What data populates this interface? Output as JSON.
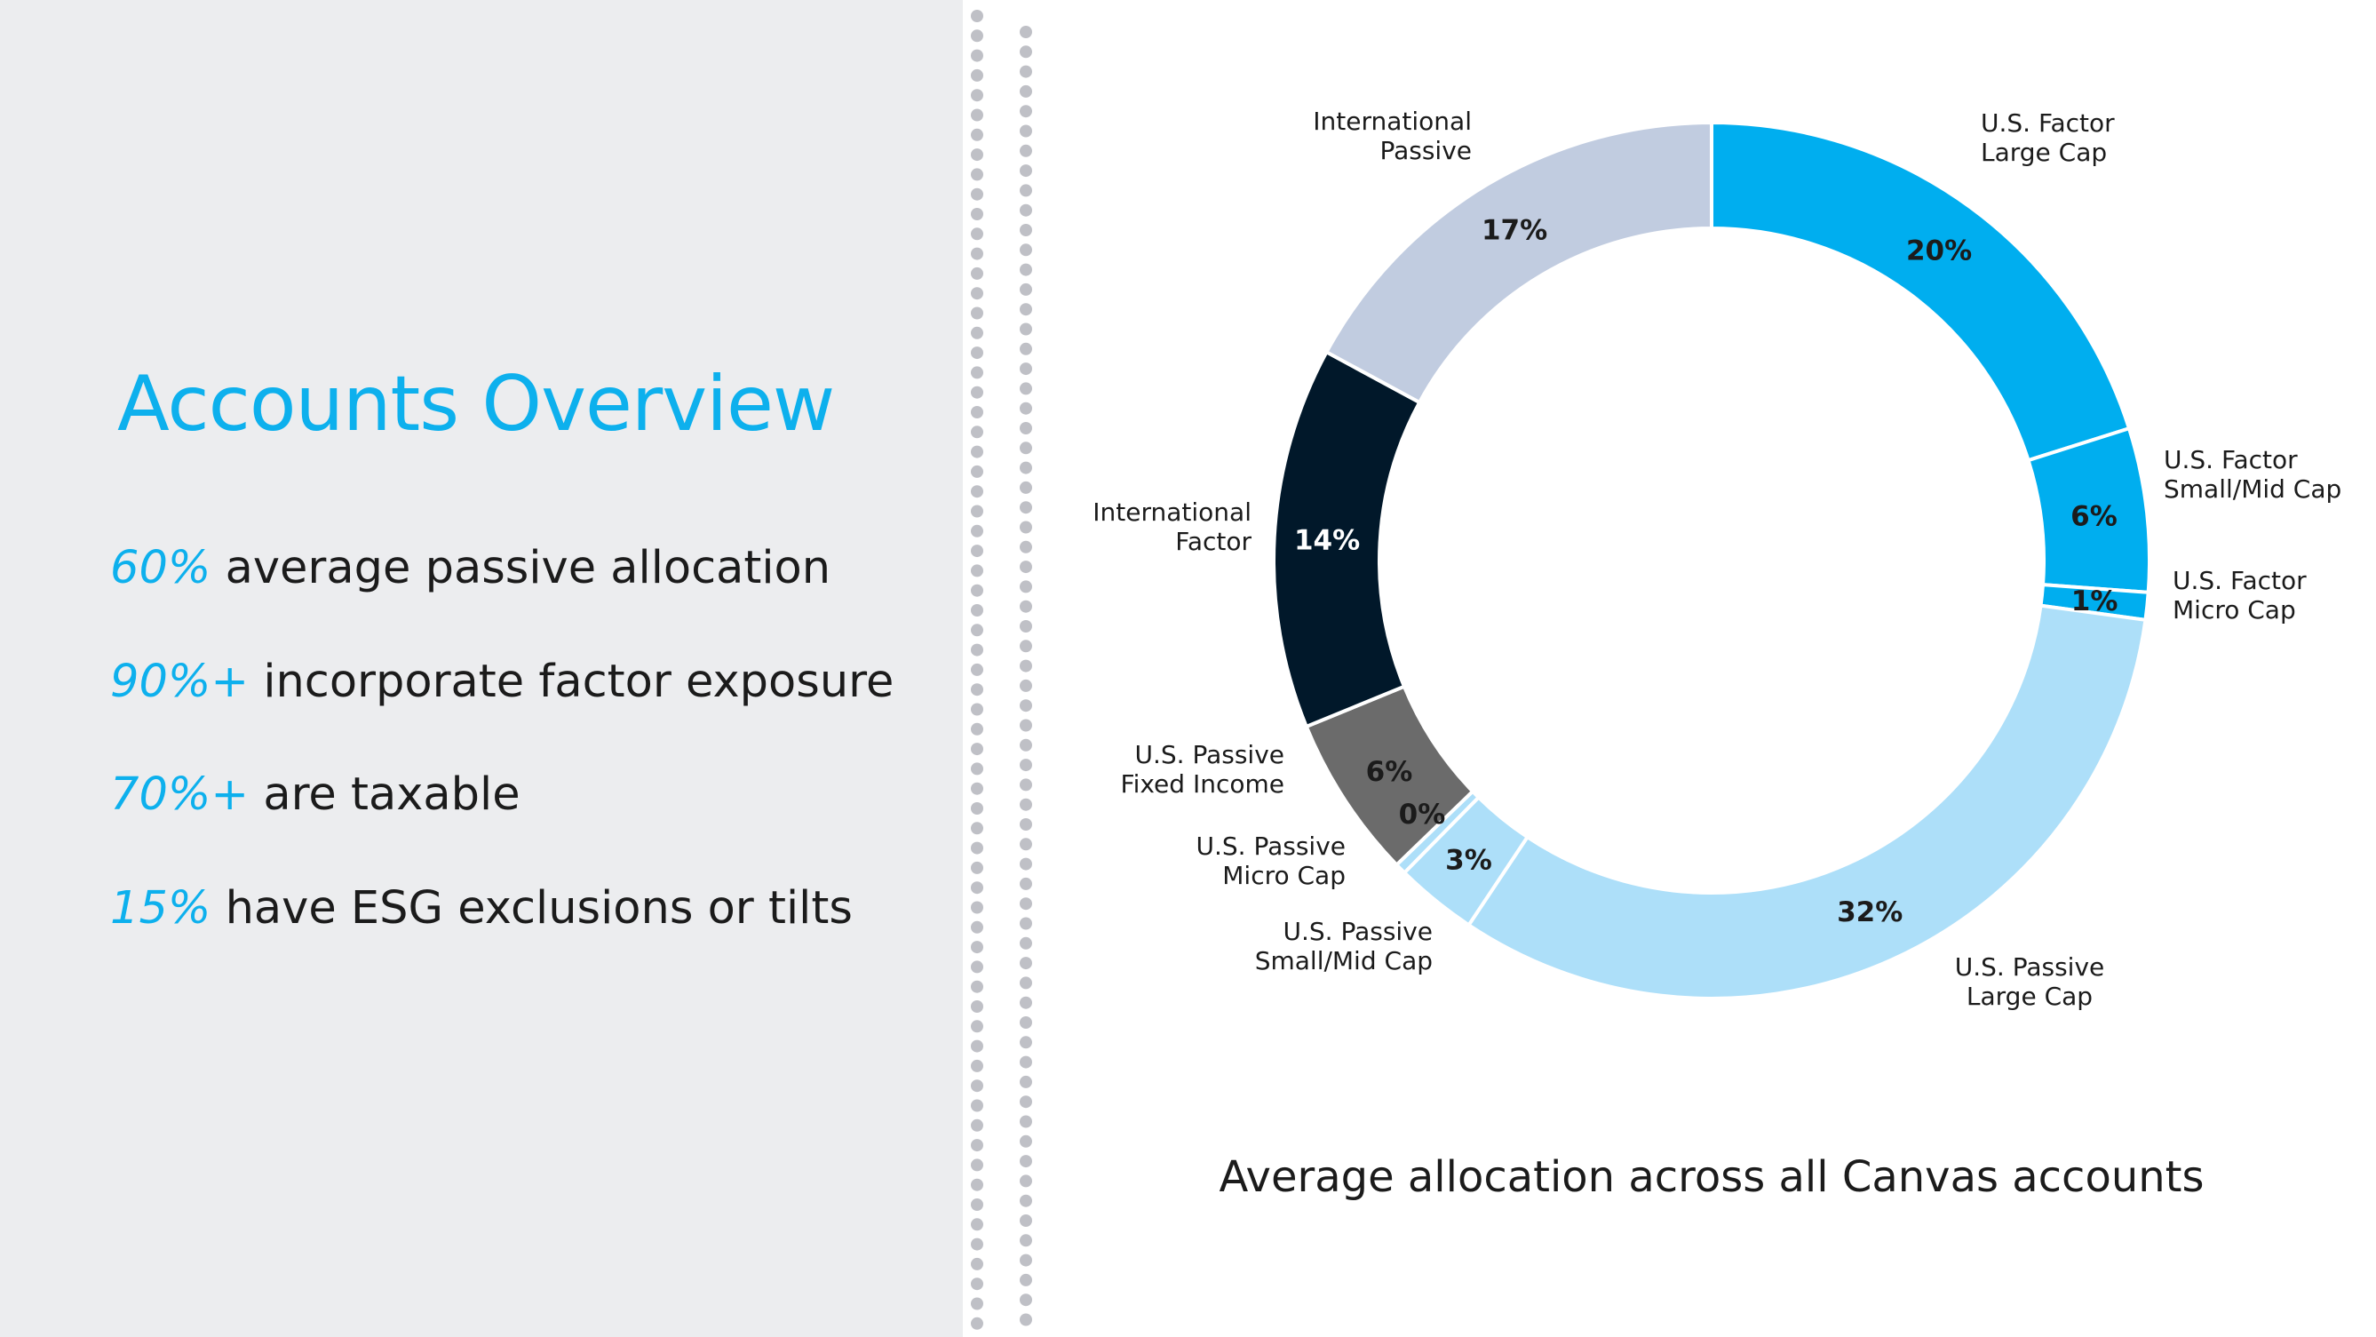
{
  "colors": {
    "accent": "#0db0ed",
    "left_bg": "#ecedef",
    "dots": "#bfc0c6"
  },
  "sidebar": {
    "title": "Accounts Overview",
    "stats": [
      {
        "value": "60%",
        "text": "average passive allocation"
      },
      {
        "value": "90%+",
        "text": "incorporate factor exposure"
      },
      {
        "value": "70%+",
        "text": "are taxable"
      },
      {
        "value": "15%",
        "text": "have ESG exclusions or tilts"
      }
    ]
  },
  "chart_data": {
    "type": "pie",
    "title": "",
    "caption": "Average allocation across all Canvas accounts",
    "legend": "none",
    "slices": [
      {
        "label": "U.S. Factor Large Cap",
        "label_lines": [
          "U.S. Factor",
          "Large Cap"
        ],
        "value": 20,
        "value_label": "20%",
        "color": "#00aeef"
      },
      {
        "label": "U.S. Factor Small/Mid Cap",
        "label_lines": [
          "U.S. Factor",
          "Small/Mid Cap"
        ],
        "value": 6,
        "value_label": "6%",
        "color": "#00aeef"
      },
      {
        "label": "U.S. Factor Micro Cap",
        "label_lines": [
          "U.S. Factor",
          "Micro Cap"
        ],
        "value": 1,
        "value_label": "1%",
        "color": "#00aeef"
      },
      {
        "label": "U.S. Passive Large Cap",
        "label_lines": [
          "U.S. Passive",
          "Large Cap"
        ],
        "value": 32,
        "value_label": "32%",
        "color": "#addff9"
      },
      {
        "label": "U.S. Passive Small/Mid Cap",
        "label_lines": [
          "U.S. Passive",
          "Small/Mid Cap"
        ],
        "value": 3,
        "value_label": "3%",
        "color": "#addff9"
      },
      {
        "label": "U.S. Passive Micro Cap",
        "label_lines": [
          "U.S. Passive",
          "Micro Cap"
        ],
        "value": 0.4,
        "value_label": "0%",
        "color": "#addff9"
      },
      {
        "label": "U.S. Passive Fixed Income",
        "label_lines": [
          "U.S. Passive",
          "Fixed Income"
        ],
        "value": 6,
        "value_label": "6%",
        "color": "#6b6b6b"
      },
      {
        "label": "International Factor",
        "label_lines": [
          "International",
          "Factor"
        ],
        "value": 14,
        "value_label": "14%",
        "color": "#01182a"
      },
      {
        "label": "International Passive",
        "label_lines": [
          "International",
          "Passive"
        ],
        "value": 17,
        "value_label": "17%",
        "color": "#c1cce0"
      }
    ]
  }
}
